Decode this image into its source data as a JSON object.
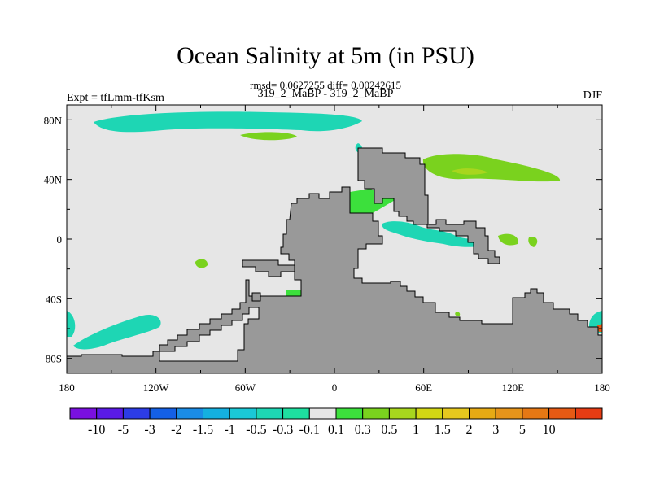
{
  "figure": {
    "title": "Ocean Salinity at 5m (in PSU)",
    "stats": "rmsd= 0.0627255 diff= 0.00242615",
    "runs": "319_2_MaBP - 319_2_MaBP",
    "experiment": "Expt = tfLmm-tfKsm",
    "season": "DJF"
  },
  "map": {
    "lon_range": [
      -180,
      180
    ],
    "lat_range": [
      -90,
      90
    ],
    "lon_ticks": [
      {
        "lon": -180,
        "label": "180"
      },
      {
        "lon": -120,
        "label": "120W"
      },
      {
        "lon": -60,
        "label": "60W"
      },
      {
        "lon": 0,
        "label": "0"
      },
      {
        "lon": 60,
        "label": "60E"
      },
      {
        "lon": 120,
        "label": "120E"
      },
      {
        "lon": 180,
        "label": "180"
      }
    ],
    "lat_ticks": [
      {
        "lat": 80,
        "label": "80N"
      },
      {
        "lat": 40,
        "label": "40N"
      },
      {
        "lat": 0,
        "label": "0"
      },
      {
        "lat": -40,
        "label": "40S"
      },
      {
        "lat": -80,
        "label": "80S"
      }
    ],
    "colors": {
      "ocean_background": "#e6e6e6",
      "land": "#999999",
      "coastline": "#000000"
    }
  },
  "colorbar": {
    "colors": [
      "#7a10e0",
      "#5a1ae6",
      "#2c3ce6",
      "#1460e6",
      "#1a8ce6",
      "#14b0e0",
      "#1ac8d6",
      "#1ed6b4",
      "#1ee0a0",
      "#e6e6e6",
      "#3ce03c",
      "#7ad21e",
      "#a8d61e",
      "#d2d614",
      "#e6c81e",
      "#e6aa14",
      "#e6941a",
      "#e67814",
      "#e65a14",
      "#e63c14"
    ],
    "labels": [
      "-10",
      "-5",
      "-3",
      "-2",
      "-1.5",
      "-1",
      "-0.5",
      "-0.3",
      "-0.1",
      "0.1",
      "0.3",
      "0.5",
      "1",
      "1.5",
      "2",
      "3",
      "5",
      "10"
    ]
  }
}
